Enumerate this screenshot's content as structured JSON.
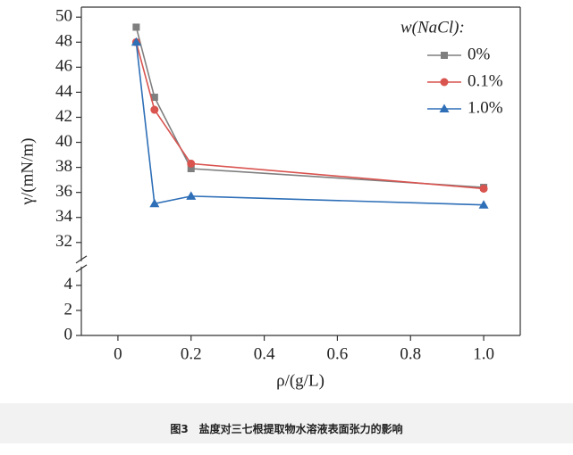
{
  "chart_data": {
    "type": "line",
    "x_label": "ρ/(g/L)",
    "y_label": "γ/(mN/m)",
    "caption": "图3　盐度对三七根提取物水溶液表面张力的影响",
    "legend_title": "w(NaCl):",
    "legend": "upper right",
    "x": [
      0.05,
      0.1,
      0.2,
      1.0
    ],
    "series": [
      {
        "name": "0%",
        "color": "#7f7f7f",
        "marker": "square",
        "values": [
          49.2,
          43.6,
          37.9,
          36.4
        ]
      },
      {
        "name": "0.1%",
        "color": "#d9534f",
        "marker": "circle",
        "values": [
          48.0,
          42.6,
          38.3,
          36.3
        ]
      },
      {
        "name": "1.0%",
        "color": "#2e6fb7",
        "marker": "triangle",
        "values": [
          48.0,
          35.1,
          35.7,
          35.0
        ]
      }
    ],
    "xlim": [
      -0.1,
      1.1
    ],
    "xticks": [
      0,
      0.2,
      0.4,
      0.6,
      0.8,
      {
        "value": 1.0,
        "label": "1.0"
      }
    ],
    "ylim": [
      0,
      50.8
    ],
    "y_break": [
      5.5,
      30.5
    ],
    "yticks": [
      0,
      2,
      4,
      32,
      34,
      36,
      38,
      40,
      42,
      44,
      46,
      48,
      50
    ]
  }
}
